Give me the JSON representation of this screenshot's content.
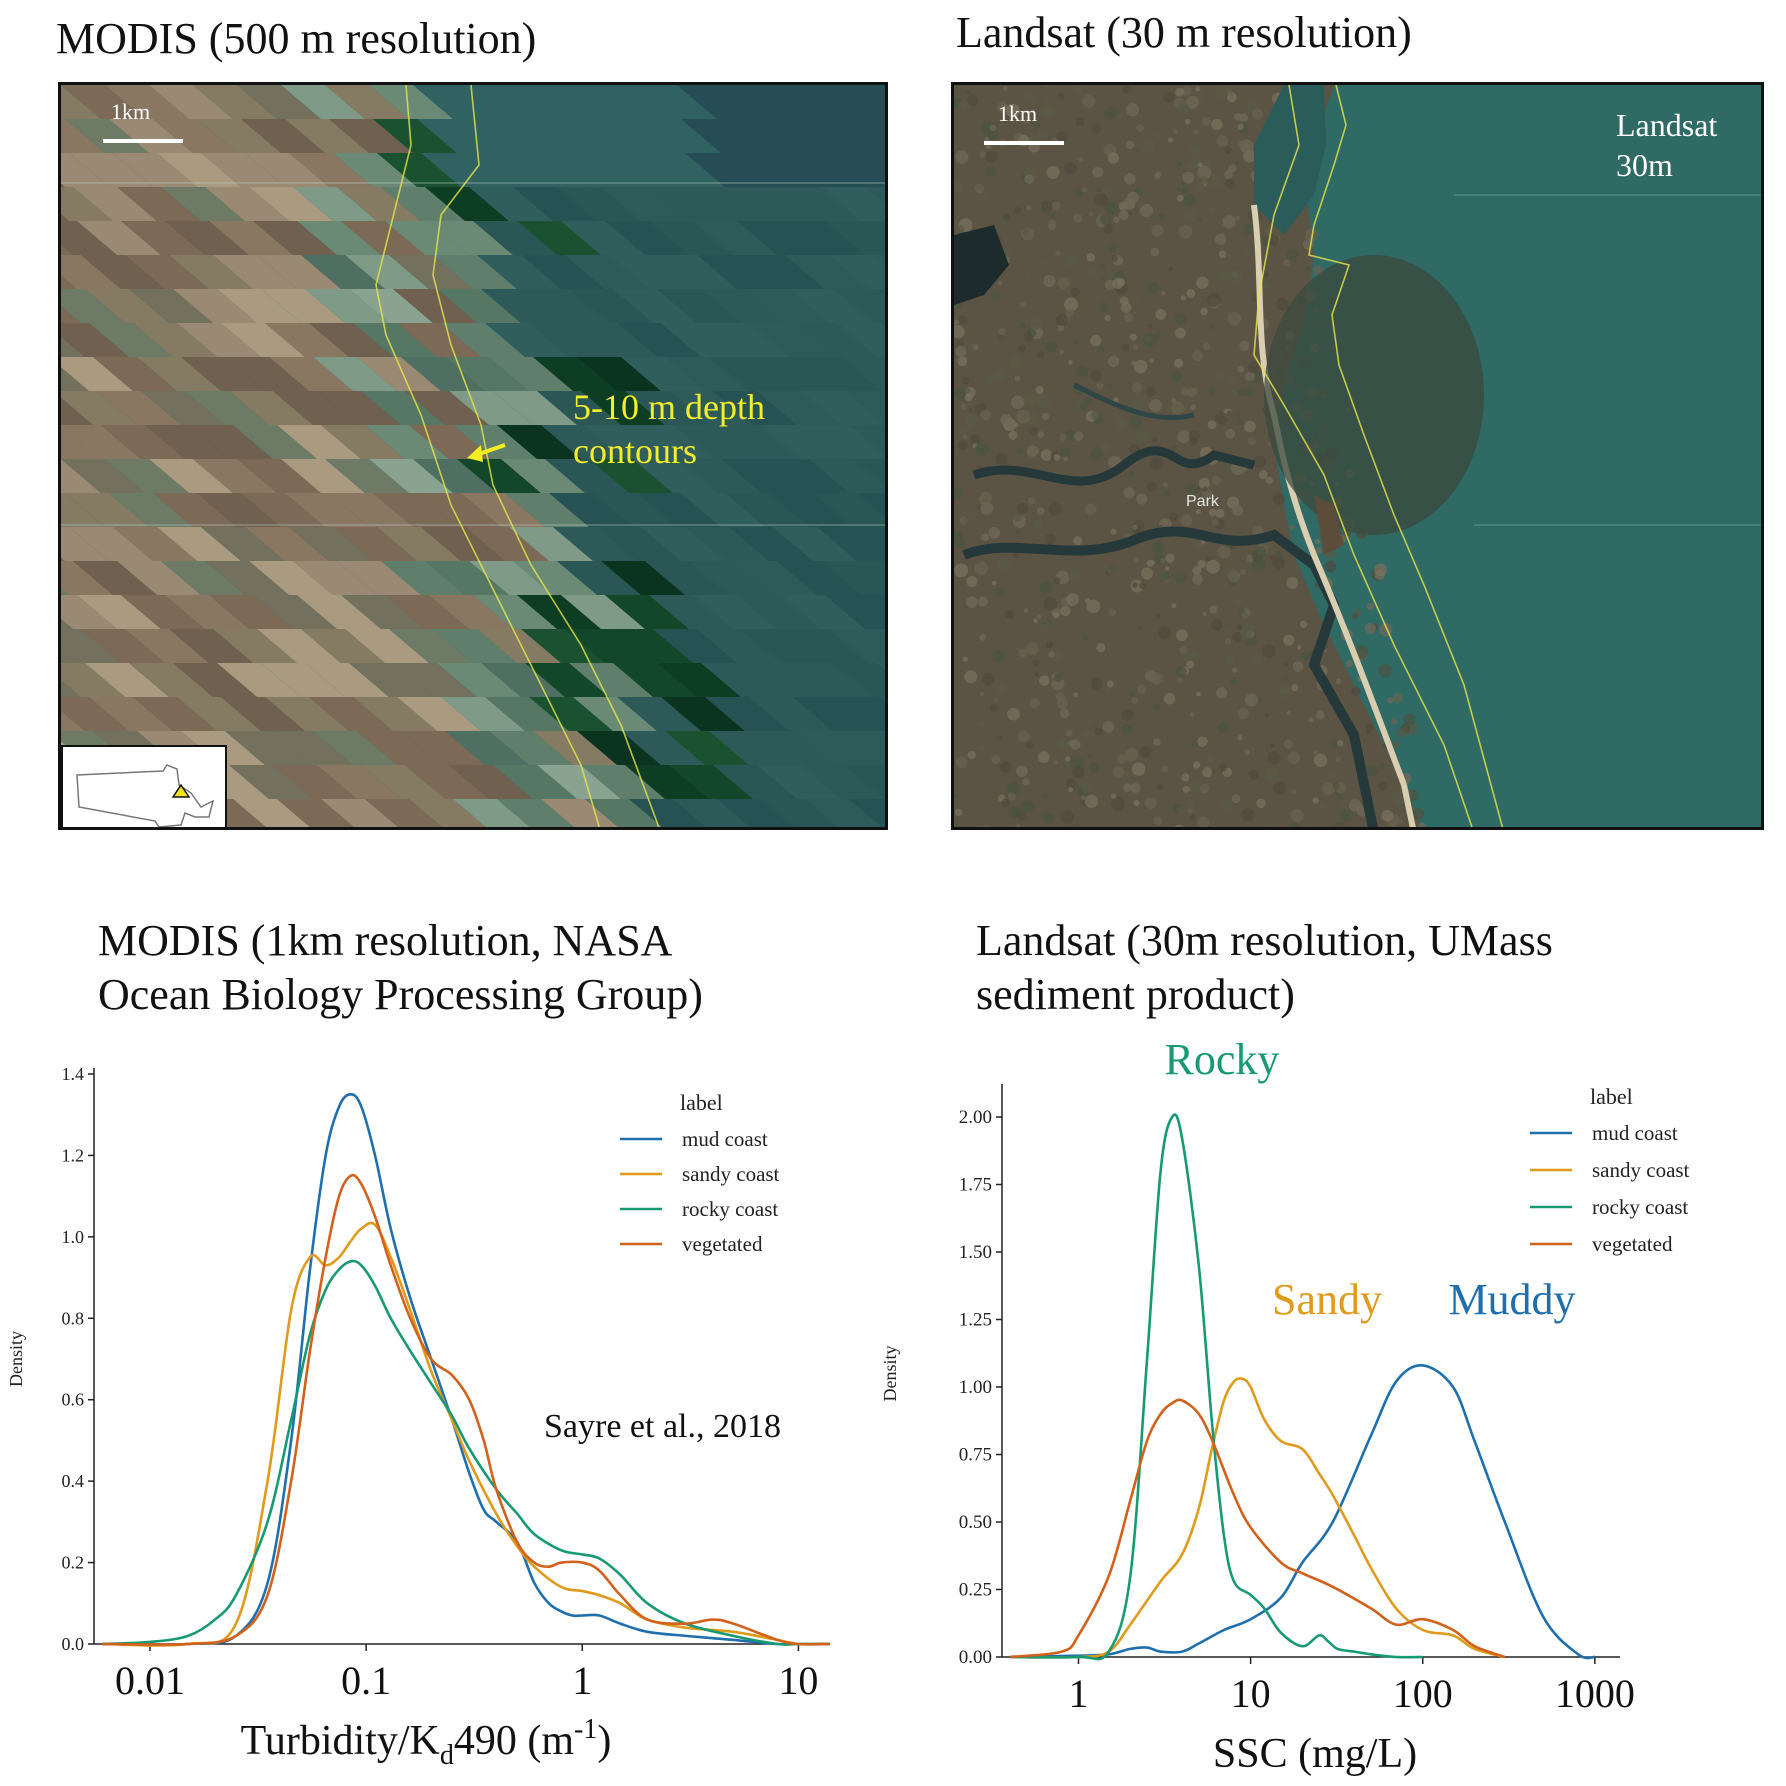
{
  "panels": {
    "modis_map": {
      "title": "MODIS (500 m resolution)",
      "scale": "1km",
      "annotation_line1": "5-10 m depth",
      "annotation_line2": "contours"
    },
    "landsat_map": {
      "title": "Landsat (30 m resolution)",
      "scale": "1km",
      "corner_line1": "Landsat",
      "corner_line2": "30m",
      "place_label": "Park"
    },
    "modis_chart": {
      "title_line1": "MODIS (1km resolution, NASA",
      "title_line2": "Ocean Biology Processing Group)",
      "citation": "Sayre et al., 2018"
    },
    "landsat_chart": {
      "title_line1": "Landsat (30m resolution, UMass",
      "title_line2": "sediment product)"
    }
  },
  "colors": {
    "mud": "#1f6fae",
    "sandy": "#e09a1c",
    "rocky": "#179a73",
    "vegetated": "#d2611c",
    "contour": "#e9e64a"
  },
  "chart_data": [
    {
      "type": "line",
      "xscale": "log",
      "xlabel": "Turbidity/Kd490 (m-1)",
      "ylabel": "Density",
      "xlim": [
        0.006,
        14
      ],
      "ylim": [
        0,
        1.4
      ],
      "xticks": [
        "0.01",
        "0.1",
        "1",
        "10"
      ],
      "yticks": [
        "0.0",
        "0.2",
        "0.4",
        "0.6",
        "0.8",
        "1.0",
        "1.2",
        "1.4"
      ],
      "legend_title": "label",
      "legend_position": "top-right",
      "series": [
        {
          "name": "mud coast",
          "color": "#1f6fae",
          "x": [
            0.006,
            0.015,
            0.025,
            0.035,
            0.045,
            0.055,
            0.065,
            0.075,
            0.085,
            0.095,
            0.11,
            0.13,
            0.16,
            0.2,
            0.25,
            0.3,
            0.35,
            0.4,
            0.5,
            0.6,
            0.7,
            0.8,
            0.9,
            1.0,
            1.2,
            1.5,
            2,
            3,
            5,
            8,
            10,
            14
          ],
          "y": [
            0,
            0,
            0.02,
            0.15,
            0.5,
            0.92,
            1.2,
            1.32,
            1.35,
            1.32,
            1.2,
            1.02,
            0.85,
            0.7,
            0.55,
            0.42,
            0.33,
            0.3,
            0.25,
            0.15,
            0.1,
            0.08,
            0.07,
            0.07,
            0.07,
            0.05,
            0.03,
            0.02,
            0.01,
            0,
            0,
            0
          ]
        },
        {
          "name": "sandy coast",
          "color": "#e09a1c",
          "x": [
            0.006,
            0.015,
            0.025,
            0.035,
            0.045,
            0.055,
            0.065,
            0.075,
            0.085,
            0.095,
            0.11,
            0.13,
            0.16,
            0.2,
            0.25,
            0.3,
            0.4,
            0.5,
            0.6,
            0.8,
            1.0,
            1.2,
            1.5,
            2,
            3,
            5,
            8,
            10,
            14
          ],
          "y": [
            0,
            0,
            0.05,
            0.4,
            0.82,
            0.95,
            0.93,
            0.95,
            0.99,
            1.02,
            1.03,
            0.95,
            0.82,
            0.67,
            0.55,
            0.45,
            0.32,
            0.24,
            0.19,
            0.14,
            0.13,
            0.12,
            0.1,
            0.06,
            0.04,
            0.03,
            0.01,
            0,
            0
          ]
        },
        {
          "name": "rocky coast",
          "color": "#179a73",
          "x": [
            0.006,
            0.01,
            0.015,
            0.02,
            0.025,
            0.035,
            0.045,
            0.055,
            0.065,
            0.075,
            0.085,
            0.095,
            0.11,
            0.13,
            0.16,
            0.2,
            0.25,
            0.3,
            0.4,
            0.5,
            0.6,
            0.8,
            1.0,
            1.2,
            1.5,
            2,
            3,
            5,
            8,
            10,
            14
          ],
          "y": [
            0,
            0.005,
            0.02,
            0.06,
            0.12,
            0.3,
            0.55,
            0.76,
            0.87,
            0.92,
            0.94,
            0.93,
            0.88,
            0.8,
            0.72,
            0.64,
            0.56,
            0.48,
            0.38,
            0.32,
            0.27,
            0.23,
            0.22,
            0.21,
            0.17,
            0.1,
            0.05,
            0.02,
            0,
            0,
            0
          ]
        },
        {
          "name": "vegetated",
          "color": "#d2611c",
          "x": [
            0.006,
            0.015,
            0.025,
            0.035,
            0.045,
            0.055,
            0.065,
            0.075,
            0.085,
            0.095,
            0.11,
            0.13,
            0.16,
            0.2,
            0.25,
            0.3,
            0.35,
            0.4,
            0.5,
            0.6,
            0.7,
            0.8,
            1.0,
            1.2,
            1.5,
            2,
            3,
            4,
            5,
            8,
            10,
            14
          ],
          "y": [
            0,
            0,
            0.02,
            0.12,
            0.4,
            0.72,
            0.95,
            1.1,
            1.15,
            1.13,
            1.05,
            0.93,
            0.8,
            0.7,
            0.66,
            0.6,
            0.5,
            0.38,
            0.25,
            0.2,
            0.19,
            0.2,
            0.2,
            0.18,
            0.12,
            0.06,
            0.05,
            0.06,
            0.05,
            0.01,
            0,
            0
          ]
        }
      ]
    },
    {
      "type": "line",
      "xscale": "log",
      "xlabel": "SSC (mg/L)",
      "ylabel": "Density",
      "xlim": [
        0.4,
        1400
      ],
      "ylim": [
        0,
        2.1
      ],
      "xticks": [
        "1",
        "10",
        "100",
        "1000"
      ],
      "yticks": [
        "0.00",
        "0.25",
        "0.50",
        "0.75",
        "1.00",
        "1.25",
        "1.50",
        "1.75",
        "2.00"
      ],
      "legend_title": "label",
      "legend_position": "top-right",
      "annotations": [
        {
          "text": "Rocky",
          "color": "#179a73"
        },
        {
          "text": "Sandy",
          "color": "#e09a1c"
        },
        {
          "text": "Muddy",
          "color": "#1f6fae"
        }
      ],
      "series": [
        {
          "name": "mud coast",
          "color": "#1f6fae",
          "x": [
            0.4,
            1,
            1.5,
            2,
            2.5,
            3,
            4,
            5,
            7,
            10,
            15,
            20,
            30,
            50,
            70,
            100,
            150,
            200,
            300,
            500,
            800,
            1000
          ],
          "y": [
            0,
            0.005,
            0.01,
            0.03,
            0.035,
            0.02,
            0.02,
            0.05,
            0.1,
            0.14,
            0.22,
            0.35,
            0.5,
            0.82,
            1.02,
            1.08,
            1.0,
            0.8,
            0.5,
            0.15,
            0.01,
            0
          ]
        },
        {
          "name": "sandy coast",
          "color": "#e09a1c",
          "x": [
            0.4,
            1,
            1.5,
            2,
            3,
            4,
            5,
            6,
            7,
            8,
            9,
            10,
            12,
            15,
            20,
            25,
            30,
            40,
            50,
            70,
            100,
            150,
            200,
            300
          ],
          "y": [
            0,
            0,
            0.02,
            0.12,
            0.28,
            0.38,
            0.55,
            0.78,
            0.95,
            1.02,
            1.03,
            1.0,
            0.88,
            0.8,
            0.77,
            0.68,
            0.6,
            0.45,
            0.33,
            0.18,
            0.1,
            0.08,
            0.03,
            0
          ]
        },
        {
          "name": "rocky coast",
          "color": "#179a73",
          "x": [
            0.4,
            1,
            1.5,
            2,
            2.5,
            3,
            3.5,
            4,
            5,
            6,
            7,
            8,
            10,
            12,
            15,
            20,
            25,
            28,
            32,
            40,
            50,
            70,
            100
          ],
          "y": [
            0,
            0,
            0.02,
            0.3,
            1.1,
            1.8,
            2.0,
            1.92,
            1.45,
            0.85,
            0.45,
            0.28,
            0.23,
            0.18,
            0.09,
            0.04,
            0.08,
            0.06,
            0.03,
            0.02,
            0.01,
            0,
            0
          ]
        },
        {
          "name": "vegetated",
          "color": "#d2611c",
          "x": [
            0.4,
            0.8,
            1,
            1.5,
            2,
            2.5,
            3,
            3.5,
            4,
            5,
            6,
            8,
            10,
            15,
            20,
            30,
            50,
            70,
            100,
            150,
            200,
            300
          ],
          "y": [
            0,
            0.02,
            0.08,
            0.3,
            0.58,
            0.8,
            0.9,
            0.94,
            0.95,
            0.9,
            0.8,
            0.6,
            0.48,
            0.35,
            0.31,
            0.26,
            0.18,
            0.12,
            0.14,
            0.1,
            0.04,
            0
          ]
        }
      ]
    }
  ]
}
